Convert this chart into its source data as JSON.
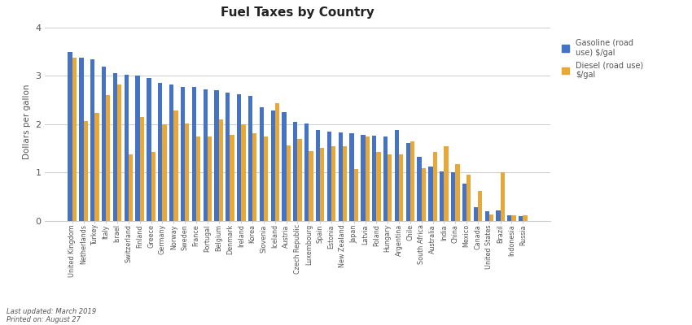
{
  "title": "Fuel Taxes by Country",
  "ylabel": "Dollars per gallon",
  "ylim": [
    0,
    4.1
  ],
  "yticks": [
    0,
    1,
    2,
    3,
    4
  ],
  "footnote_line1": "Last updated: March 2019",
  "footnote_line2": "Printed on: August 27",
  "legend_labels": [
    "Gasoline (road\nuse) $/gal",
    "Diesel (road use)\n$/gal"
  ],
  "bar_color_gasoline": "#4472C4",
  "bar_color_diesel": "#E8A838",
  "countries": [
    "United Kingdom",
    "Netherlands",
    "Turkey",
    "Italy",
    "Israel",
    "Switzerland",
    "Finland",
    "Greece",
    "Germany",
    "Norway",
    "Sweden",
    "France",
    "Portugal",
    "Belgium",
    "Denmark",
    "Ireland",
    "Korea",
    "Slovenia",
    "Iceland",
    "Austria",
    "Czech Republic",
    "Luxembourg",
    "Spain",
    "Estonia",
    "New Zealand",
    "Japan",
    "Latvia",
    "Poland",
    "Hungary",
    "Argentina",
    "Chile",
    "South Africa",
    "Australia",
    "India",
    "China",
    "Mexico",
    "Canada",
    "United States",
    "Brazil",
    "Indonesia",
    "Russia"
  ],
  "gasoline": [
    3.5,
    3.37,
    3.35,
    3.2,
    3.05,
    3.02,
    3.0,
    2.95,
    2.85,
    2.82,
    2.78,
    2.78,
    2.72,
    2.7,
    2.65,
    2.62,
    2.58,
    2.35,
    2.28,
    2.25,
    2.05,
    2.02,
    1.88,
    1.85,
    1.83,
    1.82,
    1.78,
    1.76,
    1.75,
    1.88,
    1.62,
    1.32,
    1.12,
    1.02,
    1.0,
    0.78,
    0.28,
    0.2,
    0.22,
    0.12,
    0.1
  ],
  "diesel": [
    3.38,
    2.07,
    2.23,
    2.6,
    2.82,
    1.38,
    2.15,
    1.43,
    2.0,
    2.28,
    2.02,
    1.75,
    1.75,
    2.1,
    1.78,
    2.0,
    1.82,
    1.75,
    2.44,
    1.57,
    1.7,
    1.45,
    1.52,
    1.55,
    1.55,
    1.08,
    1.75,
    1.43,
    1.38,
    1.38,
    1.65,
    1.1,
    1.43,
    1.55,
    1.18,
    0.95,
    0.62,
    0.13,
    1.0,
    0.12,
    0.12
  ],
  "background_color": "#ffffff",
  "grid_color": "#cccccc",
  "text_color": "#555555"
}
